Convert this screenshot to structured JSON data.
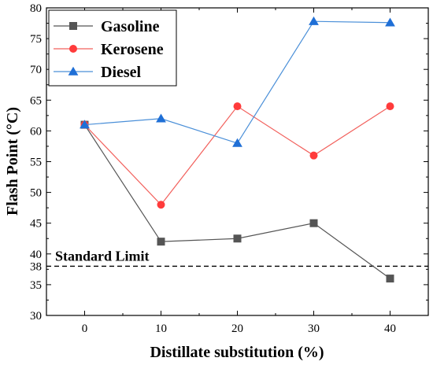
{
  "chart_data": {
    "type": "line",
    "title": "",
    "xlabel": "Distillate substitution (%)",
    "ylabel": "Flash Point (°C)",
    "x": [
      0,
      10,
      20,
      30,
      40
    ],
    "xlim": [
      -5,
      45
    ],
    "ylim": [
      30,
      80
    ],
    "xticks": [
      "0",
      "10",
      "20",
      "30",
      "40"
    ],
    "yticks": [
      "30",
      "35",
      "38",
      "40",
      "45",
      "50",
      "55",
      "60",
      "65",
      "70",
      "75",
      "80"
    ],
    "ytick_values": [
      30,
      35,
      38,
      40,
      45,
      50,
      55,
      60,
      65,
      70,
      75,
      80
    ],
    "grid": false,
    "legend_position": "top-left",
    "series": [
      {
        "name": "Gasoline",
        "values": [
          61,
          42,
          42.5,
          45,
          36
        ],
        "color": "#555555",
        "line_color": "#555555",
        "marker": "square"
      },
      {
        "name": "Kerosene",
        "values": [
          61,
          48,
          64,
          56,
          64
        ],
        "color": "#ff3b3b",
        "line_color": "#f2605c",
        "marker": "circle"
      },
      {
        "name": "Diesel",
        "values": [
          61,
          62,
          58,
          77.8,
          77.6
        ],
        "color": "#1f6fd6",
        "line_color": "#4a8fd8",
        "marker": "triangle"
      }
    ],
    "reference_line": {
      "value": 38,
      "label": "Standard Limit",
      "style": "dashed"
    }
  }
}
